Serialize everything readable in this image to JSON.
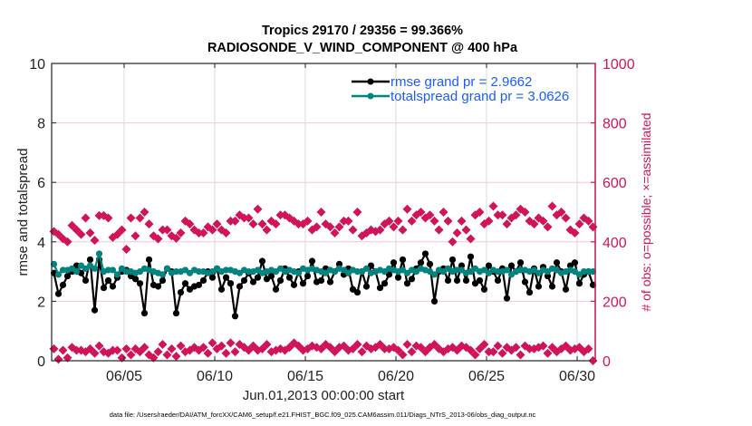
{
  "chart_data": {
    "type": "line",
    "title": [
      "Tropics 29170 / 29356 = 99.366%",
      "RADIOSONDE_V_WIND_COMPONENT @ 400 hPa"
    ],
    "xlabel": "Jun.01,2013 00:00:00 start",
    "ylabel": "rmse and totalspread",
    "y2label": "# of obs: o=possible; ×=assimilated",
    "footnote": "data file: /Users/raeder/DAI/ATM_forcXX/CAM6_setup/f.e21.FHIST_BGC.f09_025.CAM6assim.011/Diags_NTrS_2013-06/obs_diag_output.nc",
    "xlim_days": [
      0,
      30
    ],
    "ylim": [
      0,
      10
    ],
    "y2lim": [
      0,
      1000
    ],
    "grid": true,
    "x_ticks": [
      {
        "day": 4,
        "label": "06/05"
      },
      {
        "day": 9,
        "label": "06/10"
      },
      {
        "day": 14,
        "label": "06/15"
      },
      {
        "day": 19,
        "label": "06/20"
      },
      {
        "day": 24,
        "label": "06/25"
      },
      {
        "day": 29,
        "label": "06/30"
      }
    ],
    "y_ticks": [
      "0",
      "2",
      "4",
      "6",
      "8",
      "10"
    ],
    "y2_ticks": [
      "0",
      "200",
      "400",
      "600",
      "800",
      "1000"
    ],
    "legend": {
      "position": "top-right",
      "entries": [
        "rmse grand pr = 2.9662",
        "totalspread grand pr = 3.0626"
      ]
    },
    "colors": {
      "rmse": "#000000",
      "totalspread": "#00847f",
      "obs": "#d1145a",
      "legend_text": "#1a5cff",
      "grid": "#d8d8d8",
      "grid_right": "#f3c6d6"
    },
    "x_start_day": 0.0,
    "x_step_day": 0.5,
    "series": [
      {
        "name": "rmse",
        "axis": "left",
        "values": [
          2.95,
          2.25,
          2.55,
          2.85,
          3.0,
          3.2,
          2.95,
          2.7,
          3.4,
          1.7,
          3.4,
          2.45,
          2.7,
          2.5,
          2.8,
          3.0,
          3.05,
          2.85,
          2.75,
          2.6,
          1.6,
          3.4,
          2.55,
          2.5,
          2.7,
          3.1,
          3.0,
          1.6,
          2.3,
          2.6,
          2.4,
          2.5,
          2.55,
          2.7,
          3.0,
          2.8,
          3.1,
          2.4,
          2.8,
          2.6,
          1.5,
          2.5,
          2.7,
          2.95,
          2.65,
          2.8,
          3.35,
          2.75,
          2.85,
          2.4,
          2.7,
          3.1,
          2.8,
          2.55,
          3.0,
          2.6,
          2.85,
          3.35,
          2.65,
          2.7,
          3.1,
          2.65,
          3.0,
          3.25,
          2.9,
          3.1,
          2.4,
          2.3,
          3.0,
          2.5,
          3.2,
          3.0,
          2.45,
          2.6,
          2.9,
          3.3,
          2.8,
          3.4,
          2.6,
          2.75,
          3.1,
          3.3,
          3.6,
          3.25,
          2.0,
          3.0,
          3.1,
          2.7,
          3.4,
          2.7,
          3.2,
          2.7,
          3.5,
          2.6,
          2.7,
          2.4,
          3.2,
          3.0,
          2.7,
          3.1,
          2.1,
          3.2,
          3.0,
          3.3,
          2.65,
          2.3,
          3.1,
          2.5,
          3.15,
          2.85,
          2.5,
          3.3,
          3.0,
          2.4,
          3.2,
          3.3,
          2.6,
          2.9,
          3.0,
          2.55
        ],
        "_note": ""
      },
      {
        "name": "totalspread",
        "axis": "left",
        "values": [
          3.25,
          2.9,
          3.05,
          3.05,
          3.1,
          3.0,
          3.2,
          3.1,
          3.2,
          3.1,
          3.6,
          3.0,
          3.05,
          3.05,
          2.9,
          3.1,
          3.0,
          3.0,
          2.95,
          3.0,
          3.1,
          3.05,
          3.0,
          2.95,
          2.9,
          3.1,
          2.95,
          3.0,
          3.0,
          3.05,
          2.95,
          3.05,
          3.0,
          3.0,
          2.95,
          3.0,
          3.1,
          3.0,
          3.05,
          3.05,
          3.0,
          2.95,
          3.05,
          3.0,
          3.0,
          3.05,
          2.95,
          3.0,
          3.05,
          3.0,
          3.1,
          3.0,
          3.05,
          3.0,
          2.95,
          3.1,
          3.05,
          3.1,
          3.05,
          3.0,
          2.95,
          3.05,
          3.0,
          3.1,
          3.05,
          2.95,
          3.05,
          3.0,
          3.0,
          3.1,
          2.95,
          3.0,
          3.05,
          3.0,
          3.1,
          3.05,
          3.0,
          3.05,
          2.95,
          3.05,
          3.0,
          3.1,
          3.05,
          3.0,
          2.9,
          3.05,
          3.0,
          3.1,
          3.0,
          3.05,
          3.05,
          2.95,
          3.0,
          3.1,
          3.0,
          3.05,
          2.95,
          3.05,
          3.0,
          3.0,
          3.05,
          2.9,
          3.0,
          3.05,
          3.05,
          3.0,
          3.05,
          2.95,
          3.05,
          3.0,
          3.1,
          3.05,
          2.95,
          3.0,
          3.05,
          3.0,
          2.9,
          3.0,
          3.0,
          3.0
        ]
      },
      {
        "name": "obs_possible_upper",
        "axis": "right",
        "values": [
          435,
          425,
          410,
          400,
          455,
          440,
          425,
          480,
          430,
          405,
          488,
          488,
          480,
          415,
          425,
          440,
          375,
          480,
          420,
          480,
          500,
          460,
          420,
          410,
          440,
          440,
          420,
          412,
          430,
          470,
          460,
          440,
          430,
          430,
          450,
          440,
          460,
          440,
          430,
          470,
          470,
          490,
          480,
          480,
          460,
          510,
          460,
          440,
          470,
          460,
          490,
          490,
          480,
          470,
          460,
          460,
          470,
          440,
          450,
          500,
          460,
          450,
          430,
          450,
          470,
          470,
          440,
          500,
          420,
          430,
          440,
          435,
          440,
          460,
          470,
          450,
          470,
          440,
          510,
          470,
          490,
          500,
          480,
          490,
          470,
          440,
          500,
          470,
          400,
          430,
          470,
          440,
          410,
          490,
          500,
          460,
          470,
          520,
          490,
          490,
          460,
          480,
          490,
          510,
          500,
          470,
          460,
          480,
          470,
          450,
          520,
          490,
          500,
          480,
          440,
          430,
          460,
          480,
          470,
          450
        ]
      },
      {
        "name": "obs_possible_lower",
        "axis": "right",
        "values": [
          40,
          5,
          35,
          10,
          45,
          35,
          35,
          30,
          40,
          25,
          50,
          30,
          25,
          35,
          35,
          10,
          40,
          20,
          40,
          30,
          45,
          20,
          10,
          30,
          55,
          20,
          40,
          15,
          50,
          30,
          35,
          45,
          35,
          45,
          25,
          60,
          40,
          50,
          25,
          60,
          30,
          55,
          45,
          35,
          50,
          35,
          40,
          55,
          30,
          35,
          40,
          35,
          45,
          60,
          50,
          35,
          40,
          50,
          45,
          40,
          55,
          45,
          30,
          45,
          50,
          35,
          40,
          55,
          30,
          50,
          40,
          45,
          55,
          40,
          40,
          45,
          35,
          20,
          55,
          30,
          50,
          45,
          30,
          45,
          55,
          40,
          30,
          40,
          45,
          35,
          50,
          45,
          35,
          20,
          40,
          55,
          30,
          30,
          50,
          25,
          45,
          35,
          45,
          20,
          50,
          40,
          40,
          45,
          50,
          25,
          45,
          30,
          40,
          50,
          35,
          40,
          45,
          30,
          40,
          0
        ]
      }
    ]
  }
}
